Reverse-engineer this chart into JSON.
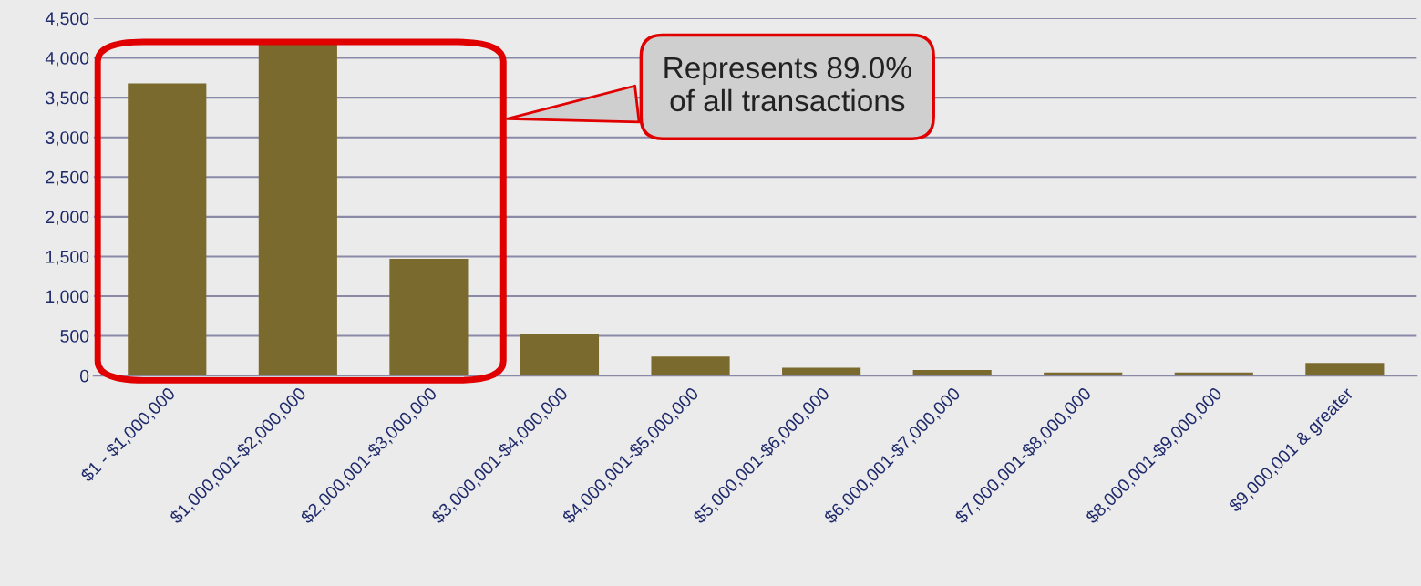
{
  "chart_data": {
    "type": "bar",
    "categories": [
      "$1 - $1,000,000",
      "$1,000,001-$2,000,000",
      "$2,000,001-$3,000,000",
      "$3,000,001-$4,000,000",
      "$4,000,001-$5,000,000",
      "$5,000,001-$6,000,000",
      "$6,000,001-$7,000,000",
      "$7,000,001-$8,000,000",
      "$8,000,001-$9,000,000",
      "$9,000,001 & greater"
    ],
    "values": [
      3680,
      4200,
      1470,
      530,
      240,
      100,
      70,
      40,
      40,
      160
    ],
    "color": "#7b6a2e",
    "ylim": [
      0,
      4500
    ],
    "yticks": [
      0,
      {
        "value": 500,
        "label": "500"
      },
      {
        "value": 1000,
        "label": "1,000"
      },
      {
        "value": 1500,
        "label": "1,500"
      },
      {
        "value": 2000,
        "label": "2,000"
      },
      {
        "value": 2500,
        "label": "2,500"
      },
      {
        "value": 3000,
        "label": "3,000"
      },
      {
        "value": 3500,
        "label": "3,500"
      },
      {
        "value": 4000,
        "label": "4,000"
      },
      {
        "value": 4500,
        "label": "4,500"
      }
    ],
    "grid": "y",
    "annotations": [
      "Represents 89.0%\nof all transactions"
    ]
  }
}
